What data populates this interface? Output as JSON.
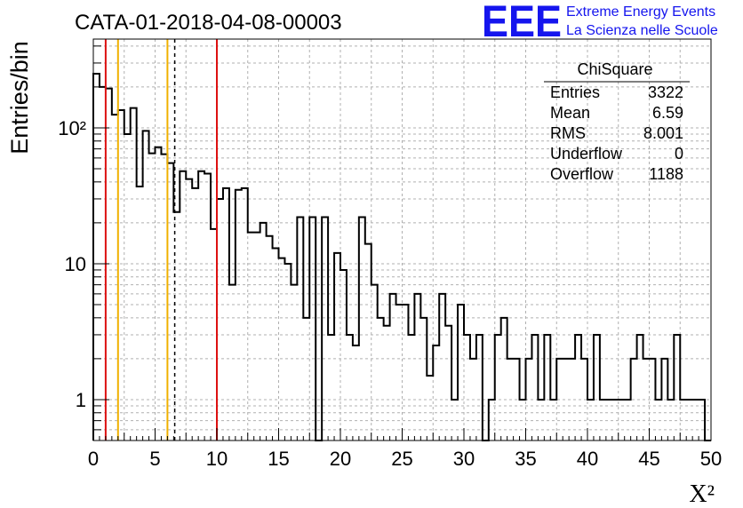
{
  "title": "CATA-01-2018-04-08-00003",
  "logo": {
    "mark": "EEE",
    "line1": "Extreme Energy Events",
    "line2": "La Scienza nelle Scuole"
  },
  "stats": {
    "name": "ChiSquare",
    "rows": [
      {
        "label": "Entries",
        "value": "3322"
      },
      {
        "label": "Mean",
        "value": "6.59"
      },
      {
        "label": "RMS",
        "value": "8.001"
      },
      {
        "label": "Underflow",
        "value": "0"
      },
      {
        "label": "Overflow",
        "value": "1188"
      }
    ]
  },
  "chart_data": {
    "type": "bar",
    "title": "CATA-01-2018-04-08-00003",
    "xlabel": "X²",
    "ylabel": "Entries/bin",
    "xlim": [
      0,
      50
    ],
    "ylim": [
      0.5,
      450
    ],
    "yscale": "log",
    "grid": true,
    "legend": "top-right",
    "bin_width": 0.5,
    "xticks": [
      0,
      5,
      10,
      15,
      20,
      25,
      30,
      35,
      40,
      45,
      50
    ],
    "yticks": [
      {
        "value": 1,
        "label": "1"
      },
      {
        "value": 10,
        "label": "10"
      },
      {
        "value": 100,
        "label": "10²"
      }
    ],
    "values": [
      250,
      200,
      195,
      125,
      135,
      90,
      140,
      37,
      95,
      65,
      72,
      64,
      55,
      24,
      48,
      42,
      36,
      48,
      46,
      18,
      30,
      36,
      7,
      35,
      36,
      17,
      17,
      20,
      16,
      13,
      11,
      10,
      7,
      22,
      4,
      22,
      0.4,
      22,
      3,
      12,
      9,
      3,
      2.5,
      22,
      14,
      7,
      4,
      3.5,
      6,
      5,
      5,
      3,
      6,
      4,
      1.5,
      2.5,
      6,
      3.5,
      1,
      5,
      3,
      2,
      3,
      0.4,
      1,
      3,
      4,
      2,
      2,
      1,
      2,
      3,
      1,
      3,
      1,
      2,
      2,
      2,
      3,
      2,
      1,
      3,
      1,
      1,
      1,
      1,
      1,
      2,
      3,
      2,
      2,
      1,
      2,
      1,
      3,
      1,
      1,
      1,
      1,
      0.4
    ],
    "vertical_lines": [
      {
        "x": 1.0,
        "color": "#dd1111",
        "style": "solid"
      },
      {
        "x": 2.0,
        "color": "#f0b000",
        "style": "solid"
      },
      {
        "x": 6.0,
        "color": "#f0b000",
        "style": "solid"
      },
      {
        "x": 6.59,
        "color": "#000000",
        "style": "dashed"
      },
      {
        "x": 10.0,
        "color": "#dd1111",
        "style": "solid"
      }
    ]
  }
}
